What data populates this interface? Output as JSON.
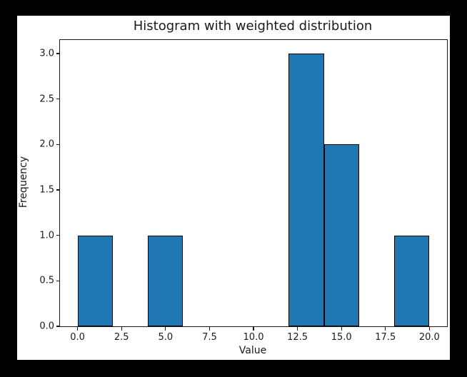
{
  "figure": {
    "outer_background": "#000000",
    "canvas_background": "#ffffff",
    "text_color": "#1a1a1a"
  },
  "chart_data": {
    "type": "bar",
    "subtype": "histogram",
    "title": "Histogram with weighted distribution",
    "xlabel": "Value",
    "ylabel": "Frequency",
    "xlim": [
      -1,
      21
    ],
    "ylim": [
      0,
      3.15
    ],
    "grid": false,
    "legend": "none",
    "bar_color": "#1f77b4",
    "bar_edge_color": "#000000",
    "bin_edges": [
      0,
      2,
      4,
      6,
      8,
      10,
      12,
      14,
      16,
      18,
      20
    ],
    "frequencies": [
      1,
      0,
      1,
      0,
      0,
      0,
      3,
      2,
      0,
      1
    ],
    "xticks": {
      "values": [
        0,
        2.5,
        5,
        7.5,
        10,
        12.5,
        15,
        17.5,
        20
      ],
      "labels": [
        "0.0",
        "2.5",
        "5.0",
        "7.5",
        "10.0",
        "12.5",
        "15.0",
        "17.5",
        "20.0"
      ]
    },
    "yticks": {
      "values": [
        0,
        0.5,
        1,
        1.5,
        2,
        2.5,
        3
      ],
      "labels": [
        "0.0",
        "0.5",
        "1.0",
        "1.5",
        "2.0",
        "2.5",
        "3.0"
      ]
    }
  }
}
